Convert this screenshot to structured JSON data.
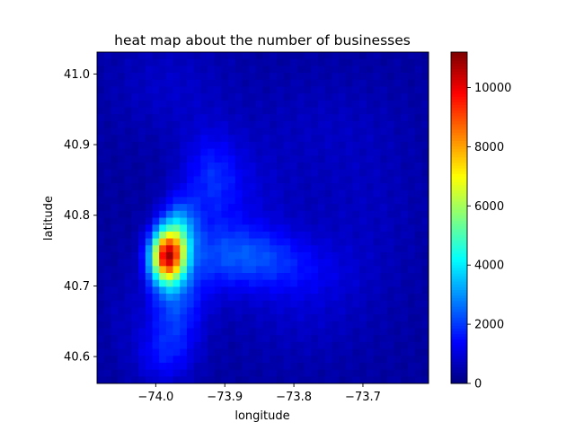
{
  "chart_data": {
    "type": "heatmap",
    "title": "heat map about the number of businesses",
    "xlabel": "longitude",
    "ylabel": "latitude",
    "xlim": [
      -74.085,
      -73.605
    ],
    "ylim": [
      40.562,
      41.031
    ],
    "xticks": [
      {
        "value": -74.0,
        "label": "−74.0"
      },
      {
        "value": -73.9,
        "label": "−73.9"
      },
      {
        "value": -73.8,
        "label": "−73.8"
      },
      {
        "value": -73.7,
        "label": "−73.7"
      }
    ],
    "yticks": [
      {
        "value": 40.6,
        "label": "40.6"
      },
      {
        "value": 40.7,
        "label": "40.7"
      },
      {
        "value": 40.8,
        "label": "40.8"
      },
      {
        "value": 40.9,
        "label": "40.9"
      },
      {
        "value": 41.0,
        "label": "41.0"
      }
    ],
    "colorbar": {
      "colormap": "jet",
      "range": [
        0,
        11200
      ],
      "ticks": [
        {
          "value": 0,
          "label": "0"
        },
        {
          "value": 2000,
          "label": "2000"
        },
        {
          "value": 4000,
          "label": "4000"
        },
        {
          "value": 6000,
          "label": "6000"
        },
        {
          "value": 8000,
          "label": "8000"
        },
        {
          "value": 10000,
          "label": "10000"
        }
      ]
    },
    "grid": {
      "cols": 48,
      "rows": 48
    },
    "hotspots": [
      {
        "x": -73.983,
        "y": 40.742,
        "sx": 0.017,
        "sy": 0.026,
        "amp": 8900
      },
      {
        "x": -73.965,
        "y": 40.782,
        "sx": 0.018,
        "sy": 0.03,
        "amp": 2300
      },
      {
        "x": -73.972,
        "y": 40.675,
        "sx": 0.028,
        "sy": 0.048,
        "amp": 1700
      },
      {
        "x": -73.99,
        "y": 40.6,
        "sx": 0.03,
        "sy": 0.03,
        "amp": 900
      },
      {
        "x": -73.92,
        "y": 40.855,
        "sx": 0.03,
        "sy": 0.045,
        "amp": 1200
      },
      {
        "x": -73.86,
        "y": 40.745,
        "sx": 0.05,
        "sy": 0.03,
        "amp": 1300
      },
      {
        "x": -73.92,
        "y": 40.74,
        "sx": 0.04,
        "sy": 0.04,
        "amp": 800
      },
      {
        "x": -73.8,
        "y": 40.72,
        "sx": 0.06,
        "sy": 0.03,
        "amp": 600
      },
      {
        "x": -73.79,
        "y": 40.66,
        "sx": 0.07,
        "sy": 0.05,
        "amp": 400
      },
      {
        "x": -73.87,
        "y": 40.83,
        "sx": 0.05,
        "sy": 0.05,
        "amp": 500
      },
      {
        "x": -73.98,
        "y": 40.98,
        "sx": 0.06,
        "sy": 0.05,
        "amp": 450
      },
      {
        "x": -73.7,
        "y": 40.8,
        "sx": 0.06,
        "sy": 0.08,
        "amp": 350
      },
      {
        "x": -73.76,
        "y": 40.93,
        "sx": 0.08,
        "sy": 0.05,
        "amp": 300
      },
      {
        "x": -74.05,
        "y": 40.66,
        "sx": 0.02,
        "sy": 0.04,
        "amp": 250
      }
    ],
    "background": 350
  }
}
